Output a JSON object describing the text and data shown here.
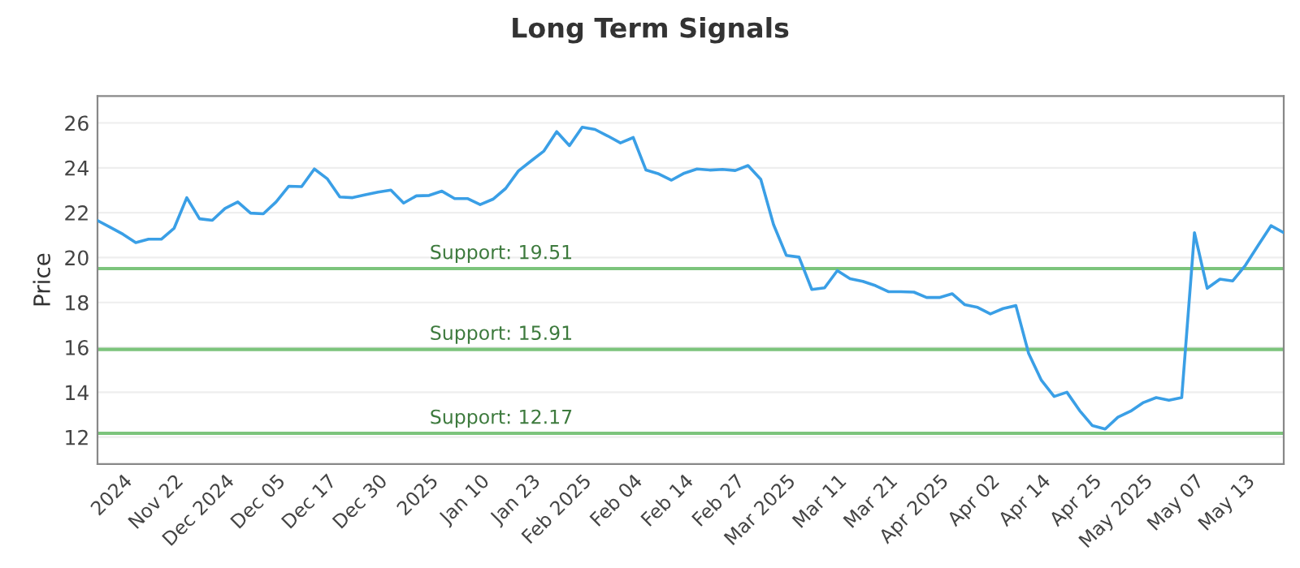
{
  "chart_data": {
    "type": "line",
    "title": "Long Term Signals",
    "ylabel": "Price",
    "categories": [
      null,
      null,
      "2024",
      null,
      null,
      null,
      "Nov 22",
      null,
      null,
      null,
      "Dec 2024",
      null,
      null,
      null,
      "Dec 05",
      null,
      null,
      null,
      "Dec 17",
      null,
      null,
      null,
      "Dec 30",
      null,
      null,
      null,
      "2025",
      null,
      null,
      null,
      "Jan 10",
      null,
      null,
      null,
      "Jan 23",
      null,
      null,
      null,
      "Feb 2025",
      null,
      null,
      null,
      "Feb 04",
      null,
      null,
      null,
      "Feb 14",
      null,
      null,
      null,
      "Feb 27",
      null,
      null,
      null,
      "Mar 2025",
      null,
      null,
      null,
      "Mar 11",
      null,
      null,
      null,
      "Mar 21",
      null,
      null,
      null,
      "Apr 2025",
      null,
      null,
      null,
      "Apr 02",
      null,
      null,
      null,
      "Apr 14",
      null,
      null,
      null,
      "Apr 25",
      null,
      null,
      null,
      "May 2025",
      null,
      null,
      null,
      "May 07",
      null,
      null,
      null,
      "May 13",
      null,
      null,
      null
    ],
    "series": [
      {
        "color": "#3a9fe6",
        "values": [
          21.65,
          21.35,
          21.04,
          20.67,
          20.82,
          20.82,
          21.3,
          22.67,
          21.73,
          21.66,
          22.19,
          22.48,
          21.98,
          21.95,
          22.48,
          23.18,
          23.16,
          23.95,
          23.52,
          22.7,
          22.67,
          22.8,
          22.92,
          23.01,
          22.43,
          22.75,
          22.77,
          22.96,
          22.63,
          22.63,
          22.36,
          22.6,
          23.08,
          23.86,
          24.31,
          24.75,
          25.61,
          24.99,
          25.81,
          25.71,
          25.42,
          25.11,
          25.35,
          23.9,
          23.73,
          23.45,
          23.76,
          23.95,
          23.9,
          23.93,
          23.88,
          24.1,
          23.49,
          21.47,
          20.1,
          20.02,
          18.58,
          18.65,
          19.42,
          19.06,
          18.94,
          18.75,
          18.48,
          18.48,
          18.46,
          18.22,
          18.22,
          18.39,
          17.9,
          17.78,
          17.49,
          17.73,
          17.86,
          15.73,
          14.53,
          13.81,
          14.0,
          13.18,
          12.51,
          12.36,
          12.89,
          13.16,
          13.54,
          13.76,
          13.64,
          13.76,
          21.11,
          18.63,
          19.04,
          18.96,
          19.66,
          20.55,
          21.42,
          21.11
        ]
      }
    ],
    "ylim": [
      10.8,
      27.2
    ],
    "yticks": [
      12,
      14,
      16,
      18,
      20,
      22,
      24,
      26
    ],
    "grid": "y",
    "marker": "none",
    "line_style": "solid",
    "ref_lines": [
      {
        "axis": "y",
        "value": 19.51,
        "label": "Support: 19.51",
        "color": "#7cc47c"
      },
      {
        "axis": "y",
        "value": 15.91,
        "label": "Support: 15.91",
        "color": "#7cc47c"
      },
      {
        "axis": "y",
        "value": 12.17,
        "label": "Support: 12.17",
        "color": "#7cc47c"
      }
    ]
  }
}
